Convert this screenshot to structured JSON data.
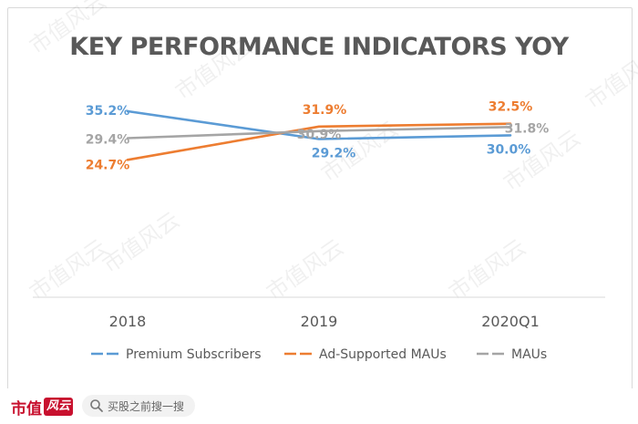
{
  "chart_data": {
    "type": "line",
    "title": "KEY PERFORMANCE INDICATORS YOY",
    "categories": [
      "2018",
      "2019",
      "2020Q1"
    ],
    "series": [
      {
        "name": "Premium Subscribers",
        "values": [
          35.2,
          29.2,
          30.0
        ],
        "labels": [
          "35.2%",
          "29.2%",
          "30.0%"
        ],
        "color": "#5b9bd5"
      },
      {
        "name": "Ad-Supported MAUs",
        "values": [
          24.7,
          31.9,
          32.5
        ],
        "labels": [
          "24.7%",
          "31.9%",
          "32.5%"
        ],
        "color": "#ed7d31"
      },
      {
        "name": "MAUs",
        "values": [
          29.4,
          30.9,
          31.8
        ],
        "labels": [
          "29.4%",
          "30.9%",
          "31.8%"
        ],
        "color": "#a5a5a5"
      }
    ],
    "ylim": [
      0,
      40
    ],
    "grid": false,
    "legend": "bottom"
  },
  "watermark_text": "市值风云",
  "footer": {
    "brand_text": "市值",
    "brand_mark": "风云",
    "search_placeholder": "买股之前搜一搜",
    "search_icon": "search-icon"
  }
}
